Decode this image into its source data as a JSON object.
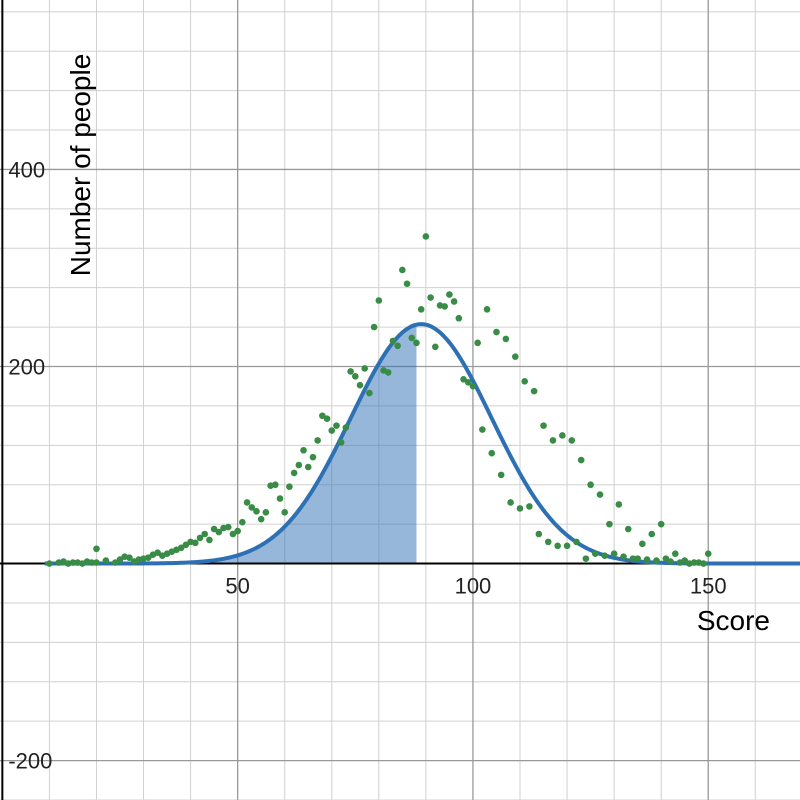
{
  "chart_data": {
    "type": "scatter",
    "xlabel": "Score",
    "ylabel": "Number of people",
    "xlim": [
      -0.5,
      169.5
    ],
    "ylim": [
      -240,
      572
    ],
    "grid": true,
    "x_ticks": [
      {
        "value": 50,
        "label": "50"
      },
      {
        "value": 100,
        "label": "100"
      },
      {
        "value": 150,
        "label": "150"
      }
    ],
    "y_ticks": [
      {
        "value": 400,
        "label": "400"
      },
      {
        "value": 200,
        "label": "200"
      },
      {
        "value": -200,
        "label": "-200"
      }
    ],
    "curve": {
      "kind": "normal",
      "peak": 243,
      "mean": 89,
      "sd": 15,
      "x_range": [
        9,
        170
      ],
      "color": "#2d70b3"
    },
    "shaded_region": {
      "from": 9,
      "to": 88,
      "color": "#2d70b3",
      "opacity": 0.5
    },
    "points_color": "#388c46",
    "points": [
      [
        10,
        0
      ],
      [
        12,
        1
      ],
      [
        13,
        2
      ],
      [
        14,
        0
      ],
      [
        15,
        1
      ],
      [
        16,
        1
      ],
      [
        17,
        0
      ],
      [
        18,
        2
      ],
      [
        19,
        1
      ],
      [
        20,
        1
      ],
      [
        20,
        15
      ],
      [
        22,
        3
      ],
      [
        24,
        1
      ],
      [
        25,
        4
      ],
      [
        26,
        7
      ],
      [
        27,
        6
      ],
      [
        28,
        2
      ],
      [
        29,
        4
      ],
      [
        30,
        5
      ],
      [
        31,
        6
      ],
      [
        32,
        9
      ],
      [
        33,
        11
      ],
      [
        34,
        8
      ],
      [
        35,
        10
      ],
      [
        36,
        12
      ],
      [
        37,
        14
      ],
      [
        38,
        16
      ],
      [
        39,
        19
      ],
      [
        40,
        22
      ],
      [
        41,
        21
      ],
      [
        42,
        26
      ],
      [
        43,
        30
      ],
      [
        44,
        24
      ],
      [
        45,
        35
      ],
      [
        46,
        32
      ],
      [
        47,
        36
      ],
      [
        48,
        37
      ],
      [
        49,
        30
      ],
      [
        50,
        33
      ],
      [
        51,
        42
      ],
      [
        52,
        62
      ],
      [
        53,
        57
      ],
      [
        54,
        53
      ],
      [
        55,
        45
      ],
      [
        56,
        52
      ],
      [
        57,
        79
      ],
      [
        58,
        80
      ],
      [
        59,
        66
      ],
      [
        60,
        52
      ],
      [
        61,
        78
      ],
      [
        62,
        92
      ],
      [
        63,
        100
      ],
      [
        64,
        115
      ],
      [
        65,
        98
      ],
      [
        66,
        108
      ],
      [
        67,
        125
      ],
      [
        68,
        150
      ],
      [
        69,
        147
      ],
      [
        70,
        135
      ],
      [
        71,
        140
      ],
      [
        72,
        123
      ],
      [
        73,
        138
      ],
      [
        74,
        195
      ],
      [
        75,
        190
      ],
      [
        76,
        181
      ],
      [
        77,
        198
      ],
      [
        78,
        173
      ],
      [
        79,
        240
      ],
      [
        80,
        267
      ],
      [
        81,
        196
      ],
      [
        82,
        194
      ],
      [
        83,
        226
      ],
      [
        84,
        221
      ],
      [
        85,
        298
      ],
      [
        86,
        284
      ],
      [
        87,
        229
      ],
      [
        88,
        224
      ],
      [
        89,
        258
      ],
      [
        90,
        332
      ],
      [
        91,
        270
      ],
      [
        92,
        220
      ],
      [
        93,
        262
      ],
      [
        94,
        261
      ],
      [
        95,
        273
      ],
      [
        96,
        266
      ],
      [
        97,
        249
      ],
      [
        98,
        187
      ],
      [
        99,
        184
      ],
      [
        100,
        180
      ],
      [
        101,
        224
      ],
      [
        102,
        136
      ],
      [
        103,
        258
      ],
      [
        104,
        112
      ],
      [
        105,
        235
      ],
      [
        106,
        90
      ],
      [
        107,
        228
      ],
      [
        108,
        62
      ],
      [
        109,
        210
      ],
      [
        110,
        56
      ],
      [
        111,
        185
      ],
      [
        112,
        58
      ],
      [
        113,
        175
      ],
      [
        114,
        30
      ],
      [
        115,
        140
      ],
      [
        116,
        22
      ],
      [
        117,
        125
      ],
      [
        118,
        18
      ],
      [
        119,
        130
      ],
      [
        120,
        18
      ],
      [
        121,
        125
      ],
      [
        122,
        22
      ],
      [
        123,
        105
      ],
      [
        124,
        5
      ],
      [
        125,
        80
      ],
      [
        126,
        10
      ],
      [
        127,
        70
      ],
      [
        128,
        8
      ],
      [
        129,
        40
      ],
      [
        130,
        10
      ],
      [
        131,
        60
      ],
      [
        132,
        7
      ],
      [
        133,
        35
      ],
      [
        134,
        5
      ],
      [
        135,
        5
      ],
      [
        136,
        20
      ],
      [
        137,
        4
      ],
      [
        138,
        30
      ],
      [
        139,
        3
      ],
      [
        140,
        40
      ],
      [
        141,
        5
      ],
      [
        142,
        2
      ],
      [
        143,
        10
      ],
      [
        144,
        1
      ],
      [
        145,
        3
      ],
      [
        146,
        0
      ],
      [
        147,
        1
      ],
      [
        148,
        1
      ],
      [
        149,
        0
      ],
      [
        150,
        10
      ]
    ]
  }
}
